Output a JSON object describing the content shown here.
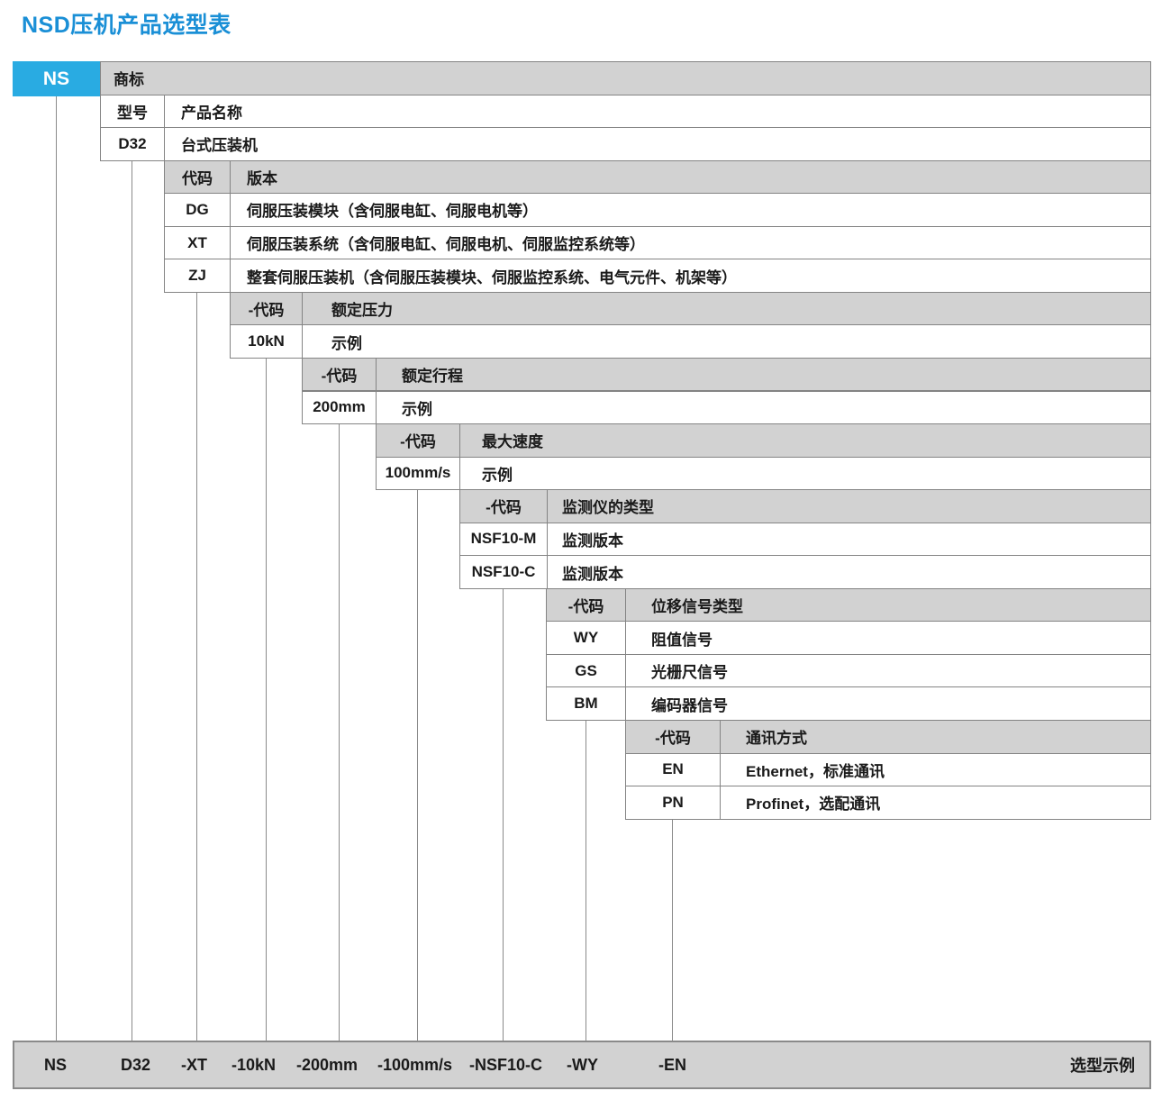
{
  "title": "NSD压机产品选型表",
  "prefix_box": {
    "label": "NS"
  },
  "colors": {
    "accent": "#29ABE2",
    "title": "#1A8FD6",
    "header_fill": "#D2D2D2",
    "row_fill": "#FFFFFF",
    "border": "#848484",
    "bar_fill": "#D2D2D2"
  },
  "blocks": [
    {
      "name": "trademark",
      "rows": [
        {
          "code": "",
          "desc": "商标",
          "header": true
        }
      ]
    },
    {
      "name": "model",
      "rows": [
        {
          "code": "型号",
          "desc": "产品名称",
          "header": false
        },
        {
          "code": "D32",
          "desc": "台式压装机",
          "header": false
        }
      ]
    },
    {
      "name": "version",
      "rows": [
        {
          "code": "代码",
          "desc": "版本",
          "header": true
        },
        {
          "code": "DG",
          "desc": "伺服压装模块（含伺服电缸、伺服电机等）",
          "header": false
        },
        {
          "code": "XT",
          "desc": "伺服压装系统（含伺服电缸、伺服电机、伺服监控系统等）",
          "header": false
        },
        {
          "code": "ZJ",
          "desc": "整套伺服压装机（含伺服压装模块、伺服监控系统、电气元件、机架等）",
          "header": false
        }
      ]
    },
    {
      "name": "rated-force",
      "rows": [
        {
          "code": "-代码",
          "desc": "额定压力",
          "header": true
        },
        {
          "code": "10kN",
          "desc": "示例",
          "header": false
        }
      ]
    },
    {
      "name": "rated-stroke",
      "rows": [
        {
          "code": "-代码",
          "desc": "额定行程",
          "header": true
        },
        {
          "code": "200mm",
          "desc": "示例",
          "header": false
        }
      ]
    },
    {
      "name": "max-speed",
      "rows": [
        {
          "code": "-代码",
          "desc": "最大速度",
          "header": true
        },
        {
          "code": "100mm/s",
          "desc": "示例",
          "header": false
        }
      ]
    },
    {
      "name": "monitor-type",
      "rows": [
        {
          "code": "-代码",
          "desc": "监测仪的类型",
          "header": true
        },
        {
          "code": "NSF10-M",
          "desc": "监测版本",
          "header": false
        },
        {
          "code": "NSF10-C",
          "desc": "监测版本",
          "header": false
        }
      ]
    },
    {
      "name": "displacement-signal-type",
      "rows": [
        {
          "code": "-代码",
          "desc": "位移信号类型",
          "header": true
        },
        {
          "code": "WY",
          "desc": "阻值信号",
          "header": false
        },
        {
          "code": "GS",
          "desc": "光栅尺信号",
          "header": false
        },
        {
          "code": "BM",
          "desc": "编码器信号",
          "header": false
        }
      ]
    },
    {
      "name": "communication-mode",
      "rows": [
        {
          "code": "-代码",
          "desc": "通讯方式",
          "header": true
        },
        {
          "code": "EN",
          "desc": "Ethernet，标准通讯",
          "header": false
        },
        {
          "code": "PN",
          "desc": "Profinet，选配通讯",
          "header": false
        }
      ]
    }
  ],
  "example_bar": {
    "items": [
      "NS",
      "D32",
      "-XT",
      "-10kN",
      "-200mm",
      "-100mm/s",
      "-NSF10-C",
      "-WY",
      "-EN"
    ],
    "note": "选型示例"
  }
}
